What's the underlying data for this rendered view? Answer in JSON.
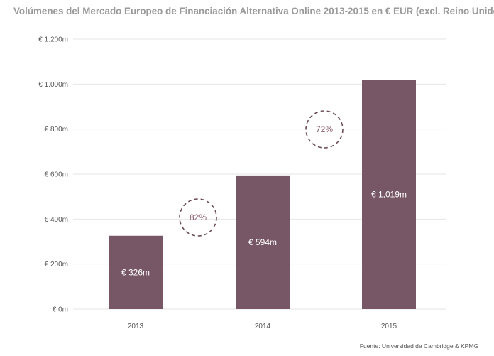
{
  "chart_data": {
    "type": "bar",
    "title": "Volúmenes del Mercado Europeo de Financiación Alternativa Online 2013-2015 en € EUR (excl. Reino Unido)",
    "categories": [
      "2013",
      "2014",
      "2015"
    ],
    "values": [
      326,
      594,
      1019
    ],
    "unit": "millones EUR",
    "data_labels": [
      "€ 326m",
      "€ 594m",
      "€ 1,019m"
    ],
    "ylim": [
      0,
      1200
    ],
    "ytick_values": [
      0,
      200,
      400,
      600,
      800,
      1000,
      1200
    ],
    "ytick_labels": [
      "€ 0m",
      "€ 200m",
      "€ 400m",
      "€ 600m",
      "€ 800m",
      "€ 1.000m",
      "€ 1.200m"
    ],
    "grid": true,
    "legend": "none",
    "annotations": [
      {
        "text": "82%",
        "between": [
          "2013",
          "2014"
        ]
      },
      {
        "text": "72%",
        "between": [
          "2014",
          "2015"
        ]
      }
    ],
    "colors": {
      "bar": "#775665",
      "circle": "#6b4c5a",
      "annotation_text": "#8a5a6e",
      "grid": "#e6e6e6",
      "title": "#9a9a9a"
    }
  },
  "source": "Fuente: Universidad de Cambridge & KPMG"
}
